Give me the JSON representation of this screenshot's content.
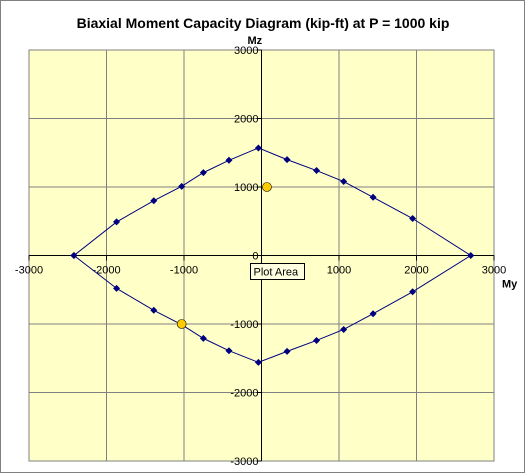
{
  "chart_data": {
    "type": "scatter",
    "title": "Biaxial Moment Capacity Diagram (kip-ft) at P = 1000 kip",
    "xlabel": "My",
    "ylabel": "Mz",
    "xlim": [
      -3000,
      3000
    ],
    "ylim": [
      -3000,
      3000
    ],
    "xticks": [
      -3000,
      -2000,
      -1000,
      0,
      1000,
      2000,
      3000
    ],
    "yticks": [
      3000,
      2000,
      1000,
      0,
      -1000,
      -2000,
      -3000
    ],
    "grid": true,
    "plot_background": "#ffffc8",
    "series": [
      {
        "style": "line-markers",
        "color": "#00007f",
        "points": [
          [
            -2420,
            0
          ],
          [
            -1870,
            490
          ],
          [
            -1390,
            800
          ],
          [
            -1030,
            1010
          ],
          [
            -750,
            1210
          ],
          [
            -420,
            1390
          ],
          [
            -40,
            1570
          ],
          [
            330,
            1400
          ],
          [
            710,
            1240
          ],
          [
            1060,
            1080
          ],
          [
            1440,
            850
          ],
          [
            1950,
            540
          ],
          [
            2700,
            0
          ],
          [
            1950,
            -530
          ],
          [
            1440,
            -850
          ],
          [
            1060,
            -1080
          ],
          [
            710,
            -1240
          ],
          [
            330,
            -1400
          ],
          [
            -40,
            -1560
          ],
          [
            -420,
            -1390
          ],
          [
            -750,
            -1210
          ],
          [
            -1030,
            -1010
          ],
          [
            -1390,
            -800
          ],
          [
            -1870,
            -480
          ],
          [
            -2420,
            0
          ]
        ]
      },
      {
        "style": "markers",
        "color": "#ffcc00",
        "points": [
          [
            70,
            1000
          ],
          [
            -1030,
            -1000
          ]
        ]
      }
    ],
    "tooltip": "Plot Area"
  }
}
